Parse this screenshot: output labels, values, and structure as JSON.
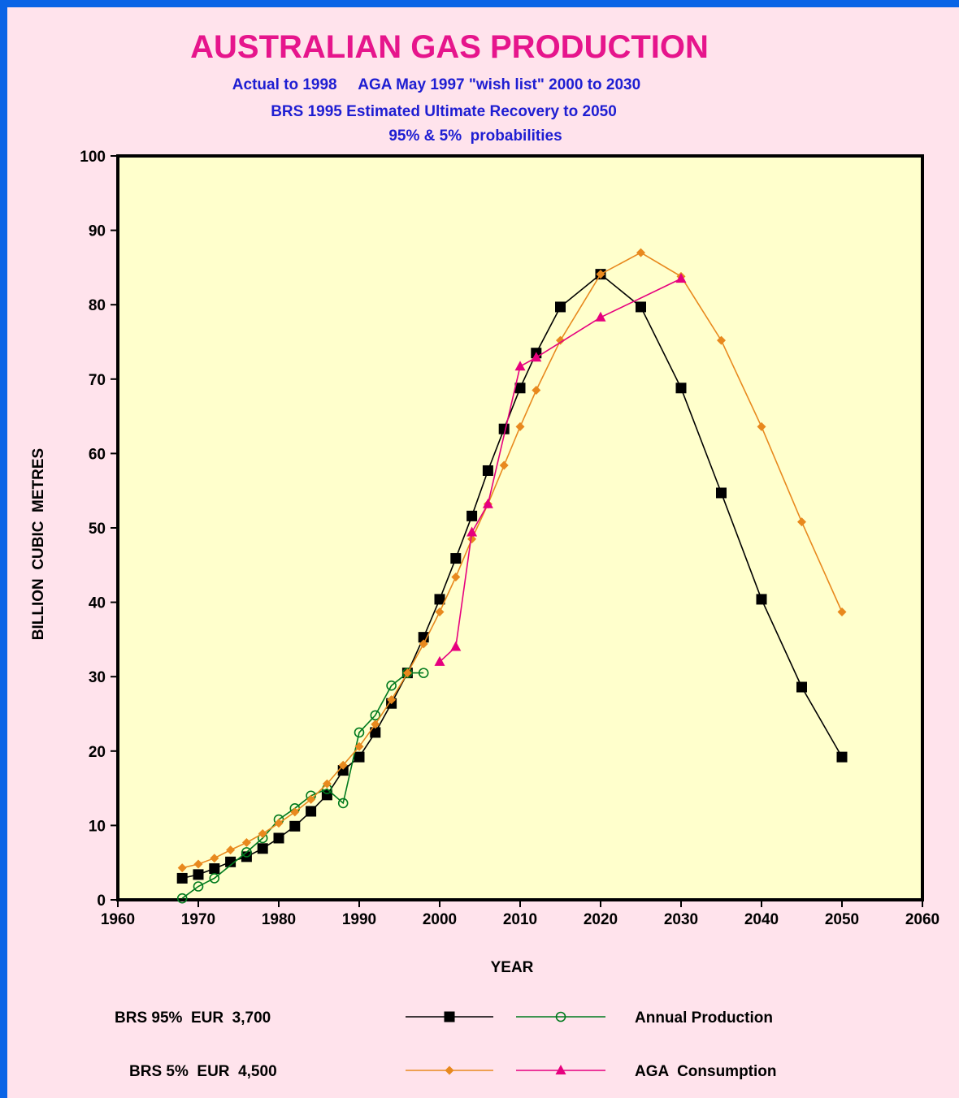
{
  "chart_data": {
    "type": "line",
    "title": "AUSTRALIAN  GAS  PRODUCTION",
    "subtitle_lines": [
      "Actual to 1998     AGA May 1997 \"wish list\" 2000 to 2030",
      "BRS 1995 Estimated Ultimate Recovery to 2050",
      "95% & 5%  probabilities"
    ],
    "xlabel": "YEAR",
    "ylabel": "BILLION  CUBIC  METRES",
    "xlim": [
      1960,
      2060
    ],
    "ylim": [
      0,
      100
    ],
    "x_ticks": [
      1960,
      1970,
      1980,
      1990,
      2000,
      2010,
      2020,
      2030,
      2040,
      2050,
      2060
    ],
    "y_ticks": [
      0,
      10,
      20,
      30,
      40,
      50,
      60,
      70,
      80,
      90,
      100
    ],
    "grid": false,
    "plot_background": "#ffffcc",
    "series": [
      {
        "key": "brs95",
        "color": "#000000",
        "marker": "square",
        "x": [
          1968,
          1970,
          1972,
          1974,
          1976,
          1978,
          1980,
          1982,
          1984,
          1986,
          1988,
          1990,
          1992,
          1994,
          1996,
          1998,
          2000,
          2002,
          2004,
          2006,
          2008,
          2010,
          2012,
          2015,
          2020,
          2025,
          2030,
          2035,
          2040,
          2045,
          2050
        ],
        "y": [
          2.9,
          3.4,
          4.2,
          5.1,
          5.8,
          6.9,
          8.3,
          9.9,
          11.9,
          14.1,
          17.4,
          19.2,
          22.5,
          26.4,
          30.5,
          35.3,
          40.4,
          45.9,
          51.6,
          57.7,
          63.3,
          68.8,
          73.5,
          79.7,
          84.1,
          79.7,
          68.8,
          54.7,
          40.4,
          28.6,
          19.2
        ]
      },
      {
        "key": "annual",
        "color": "#007a1e",
        "marker": "circle-open",
        "x": [
          1968,
          1970,
          1972,
          1976,
          1978,
          1980,
          1982,
          1984,
          1986,
          1988,
          1990,
          1992,
          1994,
          1996,
          1998
        ],
        "y": [
          0.2,
          1.8,
          2.9,
          6.4,
          8.3,
          10.8,
          12.3,
          14.0,
          14.9,
          13.0,
          22.5,
          24.8,
          28.8,
          30.5,
          30.5
        ]
      },
      {
        "key": "brs5",
        "color": "#e8891e",
        "marker": "diamond",
        "x": [
          1968,
          1970,
          1972,
          1974,
          1976,
          1978,
          1980,
          1982,
          1984,
          1986,
          1988,
          1990,
          1992,
          1994,
          1996,
          1998,
          2000,
          2002,
          2004,
          2006,
          2008,
          2010,
          2012,
          2015,
          2020,
          2025,
          2030,
          2035,
          2040,
          2045,
          2050
        ],
        "y": [
          4.3,
          4.8,
          5.6,
          6.7,
          7.7,
          8.9,
          10.3,
          11.8,
          13.5,
          15.6,
          18.1,
          20.6,
          23.6,
          26.9,
          30.5,
          34.4,
          38.7,
          43.4,
          48.5,
          53.2,
          58.4,
          63.6,
          68.5,
          75.2,
          84.1,
          87.0,
          83.8,
          75.2,
          63.6,
          50.8,
          38.7
        ]
      },
      {
        "key": "aga",
        "color": "#e6007e",
        "marker": "triangle",
        "x": [
          2000,
          2002,
          2004,
          2006,
          2010,
          2012,
          2020,
          2030
        ],
        "y": [
          32.0,
          34.0,
          49.4,
          53.2,
          71.7,
          72.9,
          78.3,
          83.5
        ]
      }
    ],
    "legend": {
      "placement": "bottom",
      "row_labels": [
        "BRS 95%  EUR  3,700",
        "BRS 5%  EUR  4,500"
      ],
      "series_labels": [
        "Annual Production",
        "AGA  Consumption"
      ]
    }
  }
}
